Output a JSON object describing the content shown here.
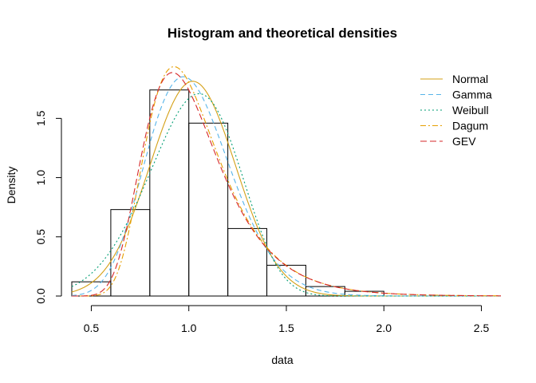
{
  "chart_data": {
    "type": "bar",
    "title": "Histogram and theoretical densities",
    "xlabel": "data",
    "ylabel": "Density",
    "xlim": [
      0.4,
      2.6
    ],
    "ylim": [
      0,
      1.9
    ],
    "x_ticks": [
      "0.5",
      "1.0",
      "1.5",
      "2.0",
      "2.5"
    ],
    "y_ticks": [
      "0.0",
      "0.5",
      "1.0",
      "1.5"
    ],
    "histogram": {
      "breaks": [
        0.4,
        0.6,
        0.8,
        1.0,
        1.2,
        1.4,
        1.6,
        1.8,
        2.0
      ],
      "density": [
        0.12,
        0.73,
        1.74,
        1.46,
        0.57,
        0.26,
        0.08,
        0.04
      ]
    },
    "legend": {
      "position": "top-right"
    },
    "series": [
      {
        "name": "Normal",
        "color": "#D4A017",
        "dash": "",
        "params": {
          "family": "normal",
          "mean": 1.02,
          "sd": 0.22
        }
      },
      {
        "name": "Gamma",
        "color": "#56B4E9",
        "dash": "6,4",
        "params": {
          "family": "gamma",
          "shape": 21.5,
          "rate": 21.1
        }
      },
      {
        "name": "Weibull",
        "color": "#009E73",
        "dash": "2,3",
        "params": {
          "family": "weibull",
          "shape": 5.0,
          "scale": 1.1
        }
      },
      {
        "name": "Dagum",
        "color": "#E69F00",
        "dash": "7,3,2,3",
        "params": {
          "family": "gev",
          "loc": 0.93,
          "scale": 0.19,
          "shape": 0.03
        }
      },
      {
        "name": "GEV",
        "color": "#D62728",
        "dash": "8,4",
        "params": {
          "family": "gev",
          "loc": 0.92,
          "scale": 0.195,
          "shape": 0.02
        }
      }
    ]
  }
}
